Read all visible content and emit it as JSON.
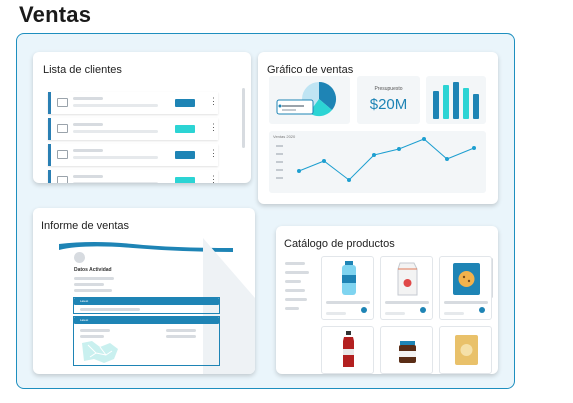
{
  "page": {
    "title": "Ventas"
  },
  "cards": {
    "clients": {
      "title": "Lista de clientes"
    },
    "sales_chart": {
      "title": "Gráfico de ventas",
      "budget_label": "Presupuesto",
      "budget_value": "$20M",
      "line_label": "Ventas 2020"
    },
    "report": {
      "title": "Informe de ventas",
      "activity_label": "Datos Actividad",
      "section1_label": "Latest",
      "section2_label": "Latest"
    },
    "catalog": {
      "title": "Catálogo de productos"
    }
  },
  "colors": {
    "frame": "#1e8fbf",
    "accent_blue": "#1e84b5",
    "accent_teal": "#2cd4d4",
    "bg": "#eaf5fb"
  },
  "clients_rows": [
    {
      "icon": "megaphone-icon",
      "tag_color": "#1e84b5"
    },
    {
      "icon": "document-icon",
      "tag_color": "#2cd4d4"
    },
    {
      "icon": "megaphone-icon",
      "tag_color": "#1e84b5"
    },
    {
      "icon": "megaphone-icon",
      "tag_color": "#2cd4d4"
    }
  ],
  "products": [
    {
      "icon": "water-bottle-icon"
    },
    {
      "icon": "milk-carton-icon"
    },
    {
      "icon": "cookie-bag-icon"
    },
    {
      "icon": "soda-bottle-icon"
    },
    {
      "icon": "jar-icon"
    },
    {
      "icon": "snack-bag-icon"
    }
  ]
}
